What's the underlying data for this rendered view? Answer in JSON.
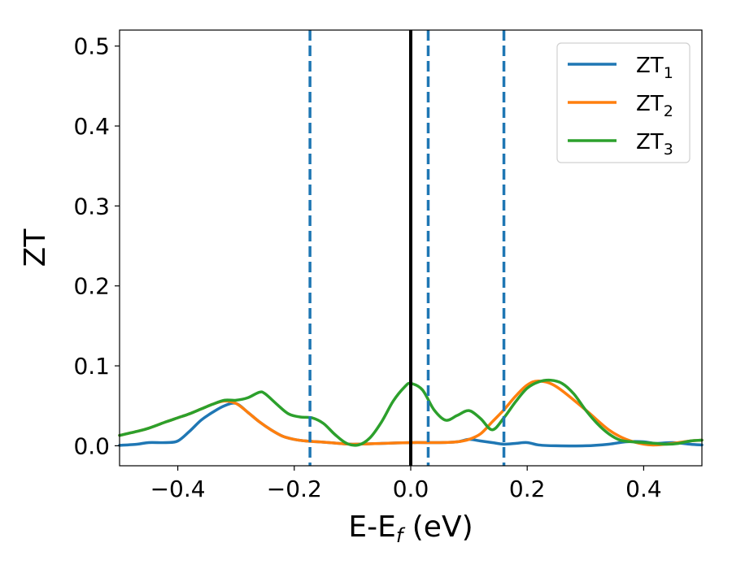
{
  "chart_data": {
    "type": "line",
    "title": "",
    "xlabel": "E-E",
    "xlabel_sub": "f",
    "xlabel_unit": " (eV)",
    "ylabel": "ZT",
    "xlim": [
      -0.5,
      0.5
    ],
    "ylim": [
      -0.025,
      0.52
    ],
    "xticks": [
      -0.4,
      -0.2,
      0.0,
      0.2,
      0.4
    ],
    "xtick_labels": [
      "−0.4",
      "−0.2",
      "0.0",
      "0.2",
      "0.4"
    ],
    "yticks": [
      0.0,
      0.1,
      0.2,
      0.3,
      0.4,
      0.5
    ],
    "ytick_labels": [
      "0.0",
      "0.1",
      "0.2",
      "0.3",
      "0.4",
      "0.5"
    ],
    "grid": false,
    "legend_position": "top-right",
    "vlines": [
      {
        "x": -0.173,
        "color": "#1f77b4",
        "style": "dashed"
      },
      {
        "x": 0.0,
        "color": "#000000",
        "style": "solid"
      },
      {
        "x": 0.03,
        "color": "#1f77b4",
        "style": "dashed"
      },
      {
        "x": 0.16,
        "color": "#1f77b4",
        "style": "dashed"
      }
    ],
    "series": [
      {
        "name": "ZT",
        "sub": "1",
        "color": "#1f77b4",
        "x": [
          -0.5,
          -0.47,
          -0.45,
          -0.42,
          -0.4,
          -0.38,
          -0.36,
          -0.34,
          -0.32,
          -0.3,
          -0.28,
          -0.26,
          -0.24,
          -0.22,
          -0.2,
          -0.18,
          -0.16,
          -0.14,
          -0.1,
          -0.05,
          0.0,
          0.05,
          0.08,
          0.1,
          0.12,
          0.14,
          0.16,
          0.18,
          0.2,
          0.22,
          0.25,
          0.3,
          0.34,
          0.37,
          0.4,
          0.42,
          0.45,
          0.48,
          0.5
        ],
        "y": [
          0.0005,
          0.002,
          0.004,
          0.004,
          0.006,
          0.018,
          0.032,
          0.042,
          0.05,
          0.053,
          0.042,
          0.03,
          0.02,
          0.012,
          0.008,
          0.006,
          0.005,
          0.004,
          0.002,
          0.003,
          0.004,
          0.004,
          0.005,
          0.008,
          0.006,
          0.004,
          0.002,
          0.003,
          0.004,
          0.001,
          0.0,
          0.0,
          0.002,
          0.005,
          0.005,
          0.003,
          0.004,
          0.002,
          0.001
        ]
      },
      {
        "name": "ZT",
        "sub": "2",
        "color": "#ff7f0e",
        "x": [
          -0.5,
          -0.47,
          -0.45,
          -0.42,
          -0.4,
          -0.38,
          -0.36,
          -0.34,
          -0.32,
          -0.3,
          -0.28,
          -0.26,
          -0.24,
          -0.22,
          -0.2,
          -0.18,
          -0.16,
          -0.14,
          -0.1,
          -0.05,
          0.0,
          0.05,
          0.08,
          0.1,
          0.12,
          0.14,
          0.16,
          0.18,
          0.2,
          0.22,
          0.25,
          0.3,
          0.34,
          0.37,
          0.4,
          0.42,
          0.45,
          0.48,
          0.5
        ],
        "y": [
          0.013,
          0.018,
          0.022,
          0.03,
          0.035,
          0.04,
          0.046,
          0.052,
          0.056,
          0.053,
          0.042,
          0.03,
          0.02,
          0.012,
          0.008,
          0.006,
          0.005,
          0.004,
          0.002,
          0.003,
          0.004,
          0.004,
          0.005,
          0.008,
          0.015,
          0.03,
          0.045,
          0.062,
          0.076,
          0.081,
          0.074,
          0.045,
          0.02,
          0.008,
          0.002,
          0.001,
          0.003,
          0.006,
          0.007
        ]
      },
      {
        "name": "ZT",
        "sub": "3",
        "color": "#2ca02c",
        "x": [
          -0.5,
          -0.47,
          -0.45,
          -0.42,
          -0.4,
          -0.38,
          -0.36,
          -0.34,
          -0.32,
          -0.3,
          -0.28,
          -0.26,
          -0.25,
          -0.23,
          -0.21,
          -0.19,
          -0.17,
          -0.15,
          -0.13,
          -0.11,
          -0.09,
          -0.07,
          -0.05,
          -0.03,
          -0.01,
          0.0,
          0.02,
          0.04,
          0.06,
          0.08,
          0.1,
          0.12,
          0.14,
          0.16,
          0.18,
          0.2,
          0.22,
          0.24,
          0.26,
          0.28,
          0.3,
          0.32,
          0.34,
          0.36,
          0.38,
          0.4,
          0.42,
          0.44,
          0.46,
          0.48,
          0.5
        ],
        "y": [
          0.013,
          0.018,
          0.022,
          0.03,
          0.035,
          0.04,
          0.046,
          0.052,
          0.057,
          0.057,
          0.06,
          0.067,
          0.065,
          0.052,
          0.04,
          0.036,
          0.035,
          0.028,
          0.014,
          0.003,
          0.001,
          0.01,
          0.03,
          0.056,
          0.074,
          0.078,
          0.07,
          0.045,
          0.032,
          0.038,
          0.044,
          0.034,
          0.02,
          0.035,
          0.055,
          0.072,
          0.08,
          0.082,
          0.078,
          0.065,
          0.045,
          0.028,
          0.015,
          0.007,
          0.005,
          0.004,
          0.003,
          0.002,
          0.003,
          0.006,
          0.007
        ]
      }
    ]
  }
}
